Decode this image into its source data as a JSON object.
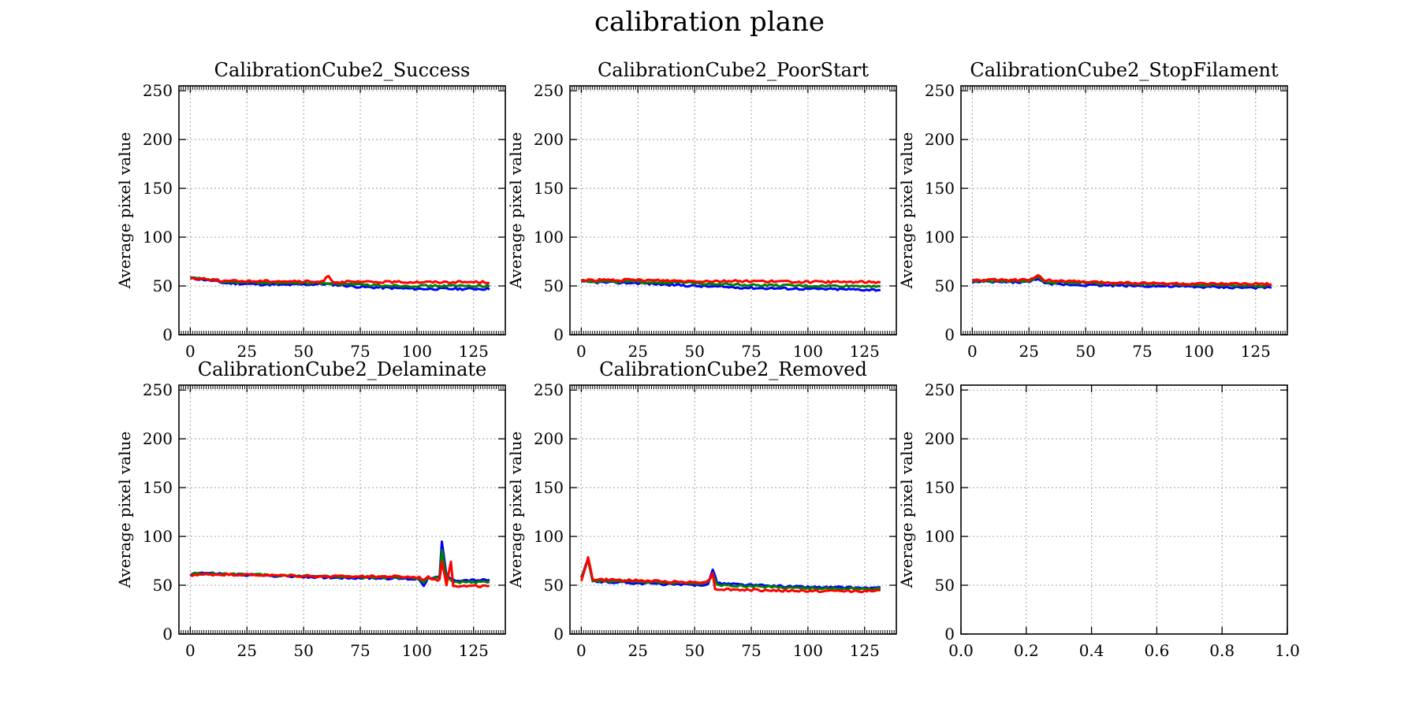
{
  "figure_title": "calibration plane",
  "colors": {
    "blue": "#0000ff",
    "green": "#008000",
    "red": "#ff0000",
    "grid": "#b0b0b0"
  },
  "chart_data": [
    {
      "type": "line",
      "title": "CalibrationCube2_Success",
      "ylabel": "Average pixel value",
      "xlabel": "",
      "xlim": [
        -5,
        139
      ],
      "ylim": [
        0,
        255
      ],
      "xticks": [
        "0",
        "25",
        "50",
        "75",
        "100",
        "125"
      ],
      "yticks": [
        "0",
        "50",
        "100",
        "150",
        "200",
        "250"
      ],
      "grid": true,
      "x_range": [
        0,
        132
      ],
      "series": [
        {
          "color": "#0000ff",
          "keyframes": [
            [
              0,
              58
            ],
            [
              8,
              56
            ],
            [
              15,
              53
            ],
            [
              40,
              51
            ],
            [
              60,
              52
            ],
            [
              75,
              49
            ],
            [
              100,
              47
            ],
            [
              132,
              47
            ]
          ]
        },
        {
          "color": "#008000",
          "keyframes": [
            [
              0,
              58
            ],
            [
              8,
              57
            ],
            [
              15,
              54
            ],
            [
              40,
              53
            ],
            [
              60,
              53
            ],
            [
              75,
              51
            ],
            [
              100,
              50
            ],
            [
              132,
              50
            ]
          ]
        },
        {
          "color": "#ff0000",
          "keyframes": [
            [
              0,
              58
            ],
            [
              8,
              57
            ],
            [
              15,
              55
            ],
            [
              40,
              55
            ],
            [
              58,
              54
            ],
            [
              61,
              61
            ],
            [
              63,
              54
            ],
            [
              100,
              54
            ],
            [
              132,
              54
            ]
          ]
        }
      ]
    },
    {
      "type": "line",
      "title": "CalibrationCube2_PoorStart",
      "ylabel": "Average pixel value",
      "xlabel": "",
      "xlim": [
        -5,
        139
      ],
      "ylim": [
        0,
        255
      ],
      "xticks": [
        "0",
        "25",
        "50",
        "75",
        "100",
        "125"
      ],
      "yticks": [
        "0",
        "50",
        "100",
        "150",
        "200",
        "250"
      ],
      "grid": true,
      "x_range": [
        0,
        132
      ],
      "series": [
        {
          "color": "#0000ff",
          "keyframes": [
            [
              0,
              54
            ],
            [
              25,
              53
            ],
            [
              50,
              50
            ],
            [
              75,
              48
            ],
            [
              100,
              47
            ],
            [
              132,
              46
            ]
          ]
        },
        {
          "color": "#008000",
          "keyframes": [
            [
              0,
              55
            ],
            [
              25,
              54
            ],
            [
              50,
              53
            ],
            [
              75,
              51
            ],
            [
              100,
              50
            ],
            [
              132,
              50
            ]
          ]
        },
        {
          "color": "#ff0000",
          "keyframes": [
            [
              0,
              56
            ],
            [
              25,
              56
            ],
            [
              50,
              55
            ],
            [
              75,
              55
            ],
            [
              100,
              54
            ],
            [
              132,
              54
            ]
          ]
        }
      ]
    },
    {
      "type": "line",
      "title": "CalibrationCube2_StopFilament",
      "ylabel": "Average pixel value",
      "xlabel": "",
      "xlim": [
        -5,
        139
      ],
      "ylim": [
        0,
        255
      ],
      "xticks": [
        "0",
        "25",
        "50",
        "75",
        "100",
        "125"
      ],
      "yticks": [
        "0",
        "50",
        "100",
        "150",
        "200",
        "250"
      ],
      "grid": true,
      "x_range": [
        0,
        132
      ],
      "series": [
        {
          "color": "#0000ff",
          "keyframes": [
            [
              0,
              54
            ],
            [
              25,
              54
            ],
            [
              29,
              58
            ],
            [
              32,
              52
            ],
            [
              50,
              51
            ],
            [
              75,
              50
            ],
            [
              100,
              49
            ],
            [
              132,
              48
            ]
          ]
        },
        {
          "color": "#008000",
          "keyframes": [
            [
              0,
              55
            ],
            [
              25,
              55
            ],
            [
              29,
              59
            ],
            [
              32,
              54
            ],
            [
              50,
              53
            ],
            [
              75,
              52
            ],
            [
              100,
              51
            ],
            [
              132,
              50
            ]
          ]
        },
        {
          "color": "#ff0000",
          "keyframes": [
            [
              0,
              56
            ],
            [
              25,
              56
            ],
            [
              29,
              60
            ],
            [
              32,
              56
            ],
            [
              50,
              54
            ],
            [
              75,
              53
            ],
            [
              100,
              52
            ],
            [
              132,
              52
            ]
          ]
        }
      ]
    },
    {
      "type": "line",
      "title": "CalibrationCube2_Delaminate",
      "ylabel": "Average pixel value",
      "xlabel": "",
      "xlim": [
        -5,
        139
      ],
      "ylim": [
        0,
        255
      ],
      "xticks": [
        "0",
        "25",
        "50",
        "75",
        "100",
        "125"
      ],
      "yticks": [
        "0",
        "50",
        "100",
        "150",
        "200",
        "250"
      ],
      "grid": true,
      "x_range": [
        0,
        132
      ],
      "series": [
        {
          "color": "#0000ff",
          "keyframes": [
            [
              0,
              60
            ],
            [
              2,
              63
            ],
            [
              20,
              61
            ],
            [
              60,
              58
            ],
            [
              90,
              57
            ],
            [
              101,
              56
            ],
            [
              103,
              50
            ],
            [
              105,
              58
            ],
            [
              110,
              58
            ],
            [
              111,
              94
            ],
            [
              113,
              60
            ],
            [
              116,
              55
            ],
            [
              132,
              55
            ]
          ]
        },
        {
          "color": "#008000",
          "keyframes": [
            [
              0,
              60
            ],
            [
              2,
              62
            ],
            [
              20,
              61
            ],
            [
              60,
              59
            ],
            [
              90,
              58
            ],
            [
              101,
              57
            ],
            [
              103,
              52
            ],
            [
              105,
              58
            ],
            [
              110,
              57
            ],
            [
              111,
              85
            ],
            [
              113,
              58
            ],
            [
              116,
              53
            ],
            [
              132,
              53
            ]
          ]
        },
        {
          "color": "#ff0000",
          "keyframes": [
            [
              0,
              59
            ],
            [
              2,
              61
            ],
            [
              20,
              61
            ],
            [
              60,
              59
            ],
            [
              90,
              59
            ],
            [
              101,
              58
            ],
            [
              103,
              56
            ],
            [
              105,
              58
            ],
            [
              110,
              55
            ],
            [
              111,
              75
            ],
            [
              113,
              50
            ],
            [
              115,
              75
            ],
            [
              116,
              50
            ],
            [
              120,
              49
            ],
            [
              132,
              49
            ]
          ]
        }
      ]
    },
    {
      "type": "line",
      "title": "CalibrationCube2_Removed",
      "ylabel": "Average pixel value",
      "xlabel": "",
      "xlim": [
        -5,
        139
      ],
      "ylim": [
        0,
        255
      ],
      "xticks": [
        "0",
        "25",
        "50",
        "75",
        "100",
        "125"
      ],
      "yticks": [
        "0",
        "50",
        "100",
        "150",
        "200",
        "250"
      ],
      "grid": true,
      "x_range": [
        0,
        132
      ],
      "series": [
        {
          "color": "#0000ff",
          "keyframes": [
            [
              0,
              58
            ],
            [
              3,
              76
            ],
            [
              5,
              54
            ],
            [
              50,
              50
            ],
            [
              56,
              51
            ],
            [
              58,
              67
            ],
            [
              60,
              52
            ],
            [
              75,
              50
            ],
            [
              100,
              48
            ],
            [
              132,
              47
            ]
          ]
        },
        {
          "color": "#008000",
          "keyframes": [
            [
              0,
              57
            ],
            [
              3,
              77
            ],
            [
              5,
              55
            ],
            [
              50,
              52
            ],
            [
              56,
              53
            ],
            [
              58,
              62
            ],
            [
              60,
              50
            ],
            [
              75,
              49
            ],
            [
              100,
              47
            ],
            [
              132,
              46
            ]
          ]
        },
        {
          "color": "#ff0000",
          "keyframes": [
            [
              0,
              55
            ],
            [
              3,
              78
            ],
            [
              5,
              56
            ],
            [
              50,
              53
            ],
            [
              56,
              54
            ],
            [
              58,
              62
            ],
            [
              59,
              46
            ],
            [
              75,
              45
            ],
            [
              100,
              44
            ],
            [
              132,
              44
            ]
          ]
        }
      ]
    },
    {
      "type": "line",
      "title": "",
      "ylabel": "Average pixel value",
      "xlabel": "",
      "xlim": [
        0,
        1
      ],
      "ylim": [
        0,
        255
      ],
      "xticks": [
        "0.0",
        "0.2",
        "0.4",
        "0.6",
        "0.8",
        "1.0"
      ],
      "yticks": [
        "0",
        "50",
        "100",
        "150",
        "200",
        "250"
      ],
      "grid": true,
      "series": []
    }
  ]
}
